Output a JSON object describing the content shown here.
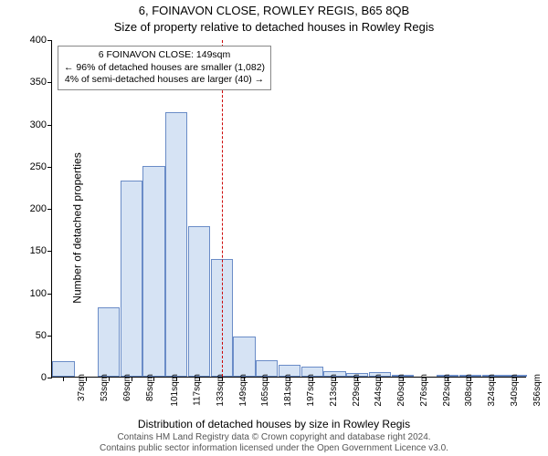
{
  "title_line1": "6, FOINAVON CLOSE, ROWLEY REGIS, B65 8QB",
  "title_line2": "Size of property relative to detached houses in Rowley Regis",
  "ylabel": "Number of detached properties",
  "xlabel": "Distribution of detached houses by size in Rowley Regis",
  "footer_line1": "Contains HM Land Registry data © Crown copyright and database right 2024.",
  "footer_line2": "Contains public sector information licensed under the Open Government Licence v3.0.",
  "chart": {
    "type": "histogram",
    "ylim": [
      0,
      400
    ],
    "ytick_step": 50,
    "xticks": [
      37,
      53,
      69,
      85,
      101,
      117,
      133,
      149,
      165,
      181,
      197,
      213,
      229,
      244,
      260,
      276,
      292,
      308,
      324,
      340,
      356
    ],
    "xtick_suffix": "sqm",
    "bar_color": "#d6e3f4",
    "bar_border": "#6a8cc7",
    "grid_color": "#ffffff",
    "background_color": "#ffffff",
    "values": [
      18,
      0,
      82,
      232,
      250,
      313,
      178,
      139,
      48,
      20,
      14,
      12,
      7,
      4,
      5,
      2,
      0,
      2,
      1,
      1,
      1
    ],
    "reference_line": {
      "x": 149,
      "color": "#cc0000"
    },
    "info_box": {
      "line1": "6 FOINAVON CLOSE: 149sqm",
      "line2": "← 96% of detached houses are smaller (1,082)",
      "line3": "4% of semi-detached houses are larger (40) →"
    }
  }
}
